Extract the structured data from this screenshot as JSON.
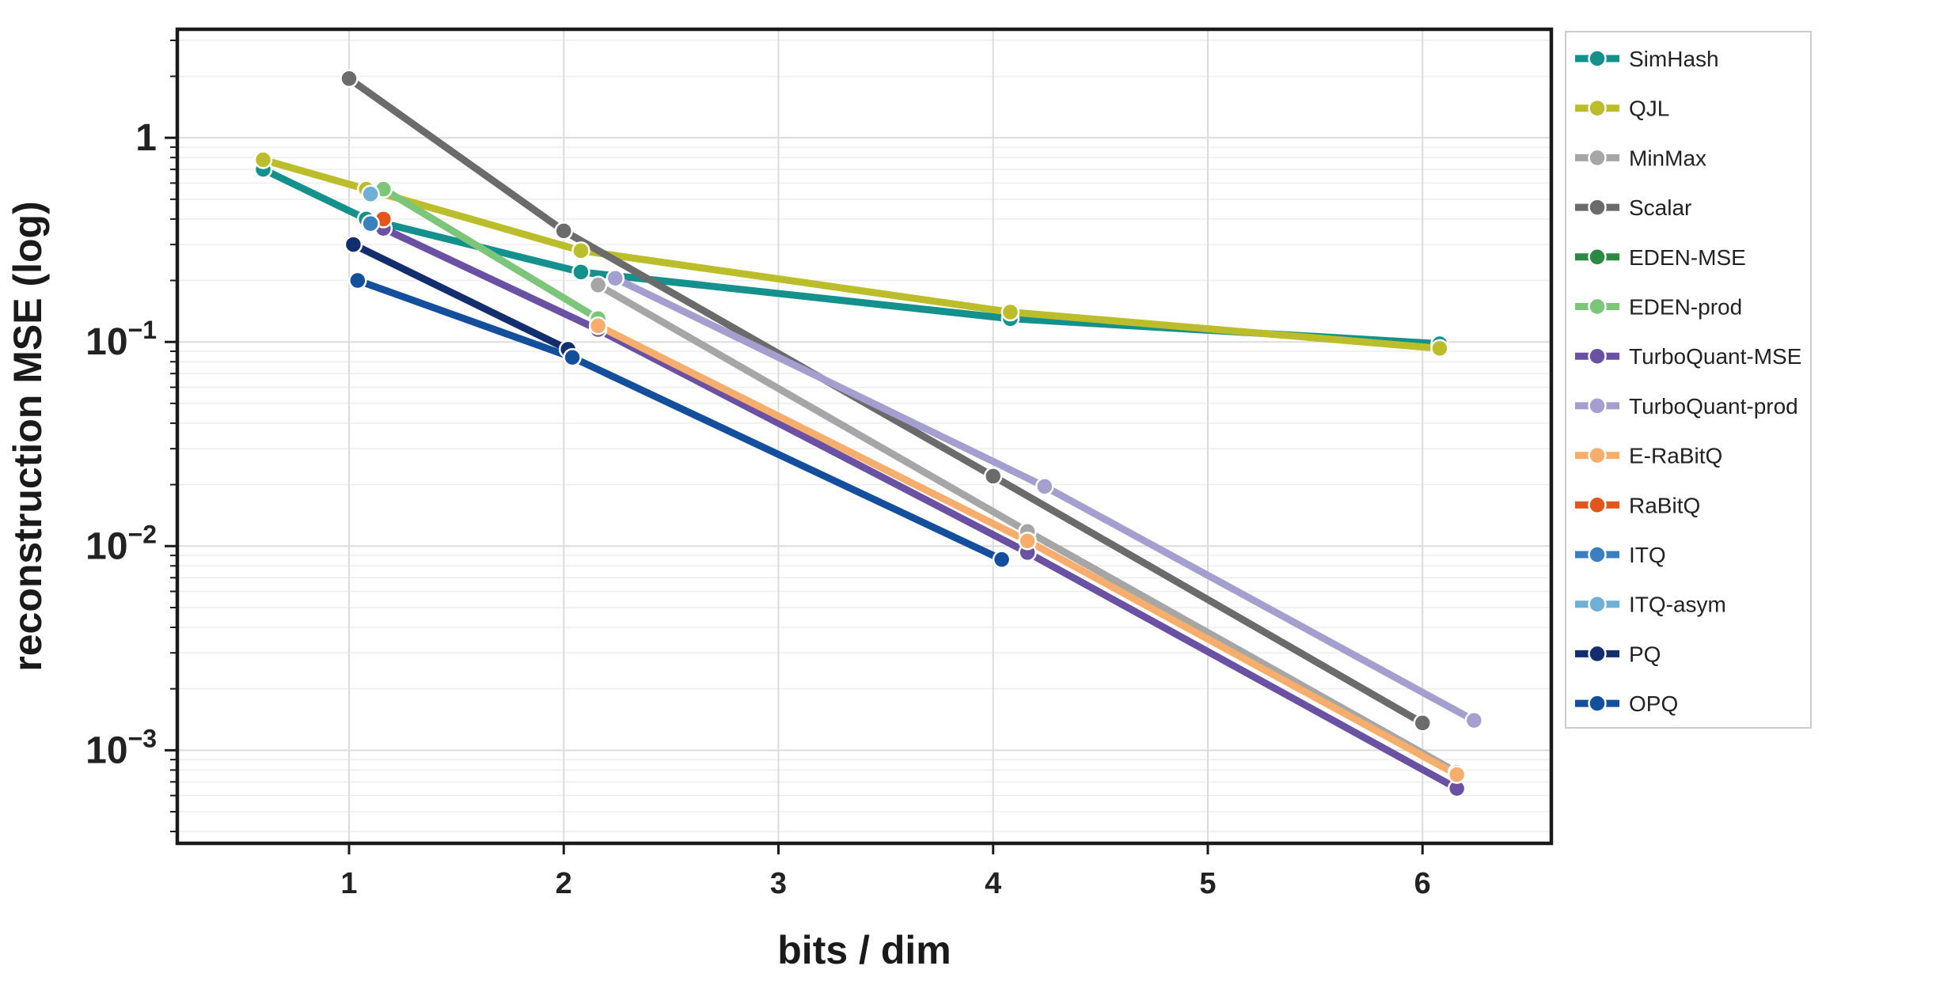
{
  "chart_data": {
    "type": "line",
    "title": "",
    "xlabel": "bits / dim",
    "ylabel": "reconstruction MSE (log)",
    "xlim": [
      0.2,
      6.6
    ],
    "ylim": [
      0.00035,
      3.4
    ],
    "yscale": "log",
    "x_ticks": [
      1,
      2,
      3,
      4,
      5,
      6
    ],
    "x_tick_labels": [
      "1",
      "2",
      "3",
      "4",
      "5",
      "6"
    ],
    "y_ticks": [
      1,
      0.1,
      0.01,
      0.001
    ],
    "y_tick_labels": [
      {
        "base": "1",
        "exp": ""
      },
      {
        "base": "10",
        "exp": "−1"
      },
      {
        "base": "10",
        "exp": "−2"
      },
      {
        "base": "10",
        "exp": "−3"
      }
    ],
    "grid": true,
    "legend_position": "outside-right",
    "series": [
      {
        "name": "SimHash",
        "color": "#15918d",
        "x": [
          0.6,
          1.08,
          2.08,
          4.08,
          6.08
        ],
        "y": [
          0.7,
          0.4,
          0.22,
          0.13,
          0.098
        ]
      },
      {
        "name": "QJL",
        "color": "#bcbd2b",
        "x": [
          0.6,
          1.08,
          2.08,
          4.08,
          6.08
        ],
        "y": [
          0.78,
          0.56,
          0.28,
          0.14,
          0.093
        ]
      },
      {
        "name": "MinMax",
        "color": "#a6a6a6",
        "x": [
          2.16,
          4.16,
          6.16
        ],
        "y": [
          0.19,
          0.0118,
          0.00078
        ]
      },
      {
        "name": "Scalar",
        "color": "#6b6b6b",
        "x": [
          1.0,
          2.0,
          4.0,
          6.0
        ],
        "y": [
          1.95,
          0.35,
          0.022,
          0.00136
        ]
      },
      {
        "name": "EDEN-MSE",
        "color": "#2a8a44",
        "x": [],
        "y": []
      },
      {
        "name": "EDEN-prod",
        "color": "#7cc67a",
        "x": [
          1.16,
          2.16
        ],
        "y": [
          0.56,
          0.13
        ]
      },
      {
        "name": "TurboQuant-MSE",
        "color": "#6b51a3",
        "x": [
          1.16,
          2.16,
          4.16,
          6.16
        ],
        "y": [
          0.36,
          0.115,
          0.0093,
          0.00065
        ]
      },
      {
        "name": "TurboQuant-prod",
        "color": "#a3a0d0",
        "x": [
          2.24,
          4.24,
          6.24
        ],
        "y": [
          0.205,
          0.0196,
          0.0014
        ]
      },
      {
        "name": "E-RaBitQ",
        "color": "#f7ad6c",
        "x": [
          2.16,
          4.16,
          6.16
        ],
        "y": [
          0.12,
          0.0106,
          0.00076
        ]
      },
      {
        "name": "RaBitQ",
        "color": "#e3561a",
        "x": [
          1.16
        ],
        "y": [
          0.4
        ]
      },
      {
        "name": "ITQ",
        "color": "#3a7fbf",
        "x": [
          1.1
        ],
        "y": [
          0.38
        ]
      },
      {
        "name": "ITQ-asym",
        "color": "#6fb0d6",
        "x": [
          1.1
        ],
        "y": [
          0.53
        ]
      },
      {
        "name": "PQ",
        "color": "#122e6e",
        "x": [
          1.02,
          2.02
        ],
        "y": [
          0.3,
          0.092
        ]
      },
      {
        "name": "OPQ",
        "color": "#134f9c",
        "x": [
          1.04,
          2.04,
          4.04
        ],
        "y": [
          0.2,
          0.084,
          0.0086
        ]
      }
    ]
  }
}
